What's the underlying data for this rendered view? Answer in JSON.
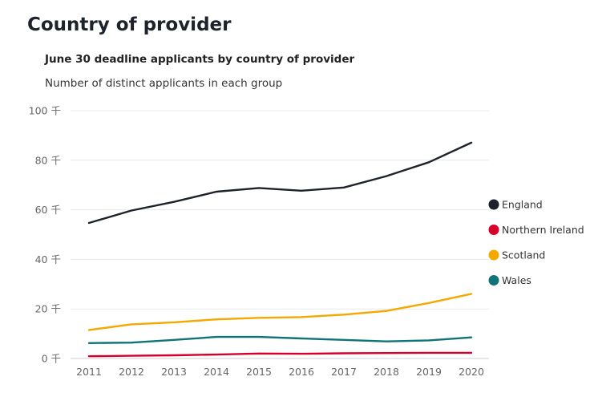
{
  "page": {
    "title": "Country of provider"
  },
  "chart_data": {
    "type": "line",
    "title": "June 30 deadline applicants  by country of provider",
    "subtitle": "Number of distinct applicants in each group",
    "xlabel": "",
    "ylabel": "",
    "x": [
      "2011",
      "2012",
      "2013",
      "2014",
      "2015",
      "2016",
      "2017",
      "2018",
      "2019",
      "2020"
    ],
    "y_ticks": [
      {
        "value": 0,
        "label": "0 千"
      },
      {
        "value": 20,
        "label": "20 千"
      },
      {
        "value": 40,
        "label": "40 千"
      },
      {
        "value": 60,
        "label": "60 千"
      },
      {
        "value": 80,
        "label": "80 千"
      },
      {
        "value": 100,
        "label": "100 千"
      }
    ],
    "ylim": [
      0,
      100
    ],
    "grid": true,
    "legend_position": "right",
    "series": [
      {
        "name": "England",
        "color": "#1e222b",
        "values": [
          54.7,
          59.7,
          63.2,
          67.3,
          68.8,
          67.7,
          69.0,
          73.6,
          79.2,
          87.1
        ]
      },
      {
        "name": "Northern Ireland",
        "color": "#d6002a",
        "values": [
          0.9,
          1.1,
          1.3,
          1.6,
          2.0,
          1.9,
          2.1,
          2.2,
          2.3,
          2.3
        ]
      },
      {
        "name": "Scotland",
        "color": "#f5a800",
        "values": [
          11.5,
          13.8,
          14.6,
          15.8,
          16.4,
          16.7,
          17.7,
          19.2,
          22.4,
          26.1
        ]
      },
      {
        "name": "Wales",
        "color": "#0f7377",
        "values": [
          6.2,
          6.4,
          7.5,
          8.7,
          8.7,
          8.1,
          7.5,
          6.9,
          7.3,
          8.5
        ]
      }
    ]
  }
}
